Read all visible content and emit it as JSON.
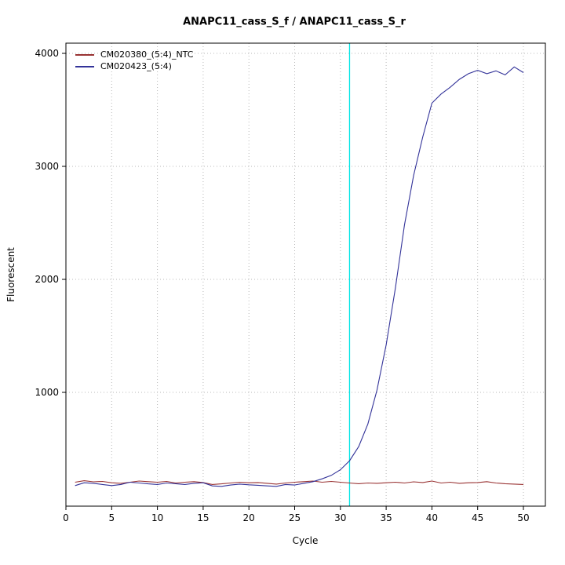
{
  "chart_data": {
    "type": "line",
    "title": "ANAPC11_cass_S_f / ANAPC11_cass_S_r",
    "xlabel": "Cycle",
    "ylabel": "Fluorescent",
    "xlim": [
      0,
      52
    ],
    "ylim": [
      0,
      4090
    ],
    "xticks": [
      0,
      5,
      10,
      15,
      20,
      25,
      30,
      35,
      40,
      45,
      50
    ],
    "yticks": [
      1000,
      2000,
      3000,
      4000
    ],
    "grid": "dotted",
    "legend_position": "top-left",
    "threshold_line": {
      "x": 31,
      "color": "#00E5E5"
    },
    "x": [
      1,
      2,
      3,
      4,
      5,
      6,
      7,
      8,
      9,
      10,
      11,
      12,
      13,
      14,
      15,
      16,
      17,
      18,
      19,
      20,
      21,
      22,
      23,
      24,
      25,
      26,
      27,
      28,
      29,
      30,
      31,
      32,
      33,
      34,
      35,
      36,
      37,
      38,
      39,
      40,
      41,
      42,
      43,
      44,
      45,
      46,
      47,
      48,
      49,
      50
    ],
    "series": [
      {
        "name": "CM020380_(5:4)_NTC",
        "color": "#993333",
        "values": [
          205,
          218,
          208,
          212,
          200,
          195,
          205,
          215,
          210,
          205,
          212,
          198,
          205,
          210,
          202,
          185,
          190,
          198,
          205,
          200,
          202,
          195,
          188,
          198,
          205,
          210,
          215,
          205,
          212,
          205,
          198,
          192,
          198,
          195,
          200,
          205,
          198,
          208,
          202,
          215,
          198,
          205,
          195,
          200,
          202,
          210,
          198,
          192,
          188,
          185
        ]
      },
      {
        "name": "CM020423_(5:4)",
        "color": "#333399",
        "values": [
          175,
          200,
          195,
          185,
          175,
          185,
          205,
          198,
          190,
          185,
          198,
          192,
          185,
          195,
          200,
          172,
          168,
          180,
          188,
          182,
          178,
          172,
          168,
          185,
          180,
          195,
          210,
          235,
          265,
          315,
          395,
          520,
          720,
          1020,
          1420,
          1920,
          2480,
          2920,
          3260,
          3560,
          3640,
          3700,
          3770,
          3820,
          3850,
          3820,
          3845,
          3810,
          3880,
          3830
        ]
      }
    ]
  }
}
